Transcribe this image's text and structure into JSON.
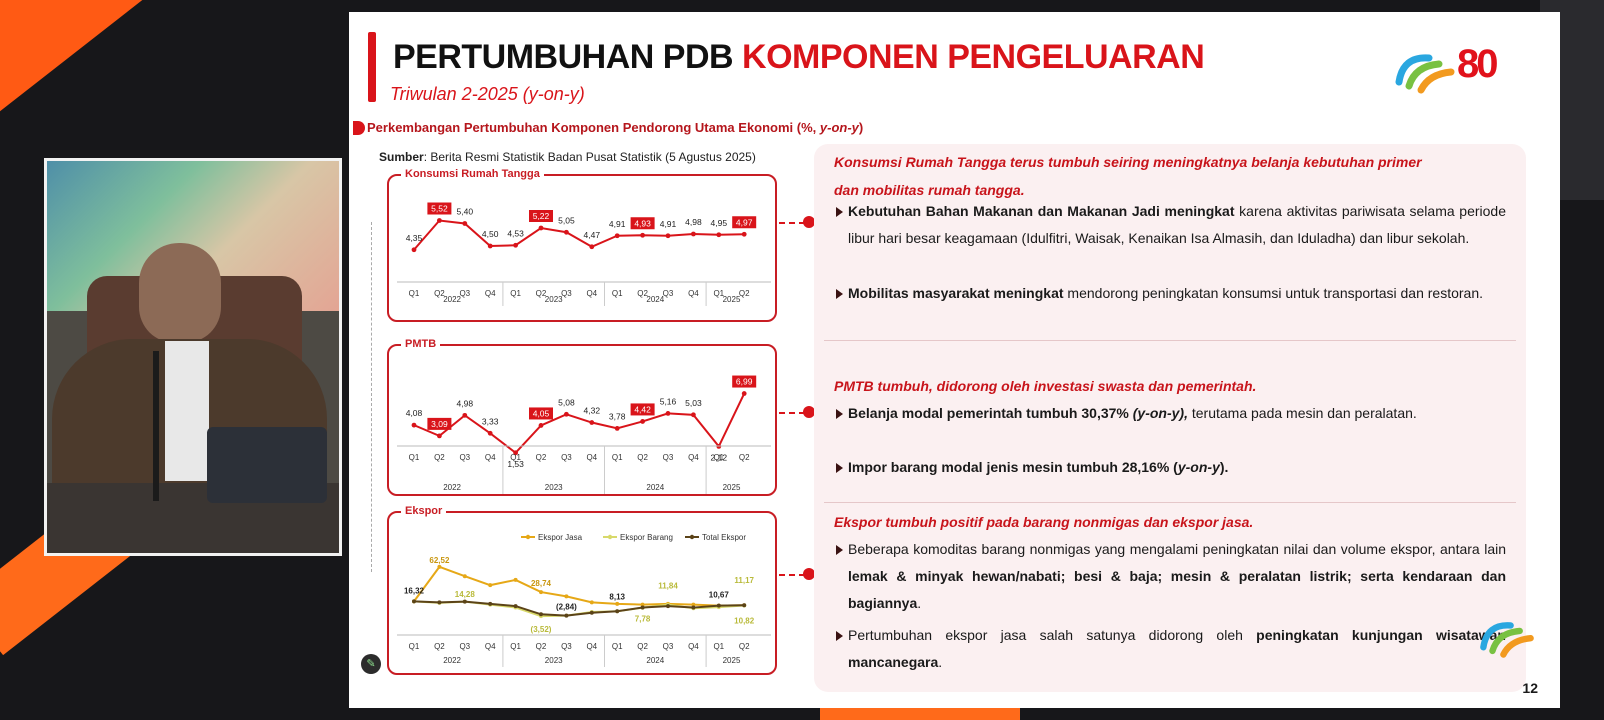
{
  "header": {
    "title_black": "PERTUMBUHAN PDB",
    "title_red": "KOMPONEN PENGELUARAN",
    "subtitle": "Triwulan 2-2025 (y-on-y)",
    "logo_text": "80",
    "page_number": "12"
  },
  "section": {
    "title_a": "Perkembangan Pertumbuhan Komponen Pendorong Utama Ekonomi (%, ",
    "title_b": "y-on-y",
    "title_c": ")",
    "source_label": "Sumber",
    "source_text": ": Berita Resmi Statistik Badan Pusat Statistik (5 Agustus 2025)"
  },
  "colors": {
    "accent": "#d9141a",
    "line_jasa": "#e6a817",
    "line_barang": "#d8d96a",
    "line_total": "#5b4318"
  },
  "chart_data": [
    {
      "type": "line",
      "title": "Konsumsi Rumah Tangga",
      "categories": [
        "Q1",
        "Q2",
        "Q3",
        "Q4",
        "Q1",
        "Q2",
        "Q3",
        "Q4",
        "Q1",
        "Q2",
        "Q3",
        "Q4",
        "Q1",
        "Q2"
      ],
      "years": [
        "2022",
        "2023",
        "2024",
        "2025"
      ],
      "values": [
        4.35,
        5.52,
        5.4,
        4.5,
        4.53,
        5.22,
        5.05,
        4.47,
        4.91,
        4.93,
        4.91,
        4.98,
        4.95,
        4.97
      ],
      "labels": [
        "4,35",
        "5,52",
        "5,40",
        "4,50",
        "4,53",
        "5,22",
        "5,05",
        "4,47",
        "4,91",
        "4,93",
        "4,91",
        "4,98",
        "4,95",
        "4,97"
      ],
      "highlight": [
        1,
        5,
        9,
        13
      ],
      "color": "#d9141a"
    },
    {
      "type": "line",
      "title": "PMTB",
      "categories": [
        "Q1",
        "Q2",
        "Q3",
        "Q4",
        "Q1",
        "Q2",
        "Q3",
        "Q4",
        "Q1",
        "Q2",
        "Q3",
        "Q4",
        "Q1",
        "Q2"
      ],
      "years": [
        "2022",
        "2023",
        "2024",
        "2025"
      ],
      "values": [
        4.08,
        3.09,
        4.98,
        3.33,
        1.53,
        4.05,
        5.08,
        4.32,
        3.78,
        4.42,
        5.16,
        5.03,
        2.12,
        6.99
      ],
      "labels": [
        "4,08",
        "3,09",
        "4,98",
        "3,33",
        "1,53",
        "4,05",
        "5,08",
        "4,32",
        "3,78",
        "4,42",
        "5,16",
        "5,03",
        "2,12",
        "6,99"
      ],
      "highlight": [
        1,
        5,
        9,
        13
      ],
      "color": "#d9141a"
    },
    {
      "type": "line",
      "title": "Ekspor",
      "categories": [
        "Q1",
        "Q2",
        "Q3",
        "Q4",
        "Q1",
        "Q2",
        "Q3",
        "Q4",
        "Q1",
        "Q2",
        "Q3",
        "Q4",
        "Q1",
        "Q2"
      ],
      "years": [
        "2022",
        "2023",
        "2024",
        "2025"
      ],
      "legend": [
        "Ekspor Jasa",
        "Ekspor Barang",
        "Total Ekspor"
      ],
      "series": [
        {
          "name": "Ekspor Jasa",
          "values": [
            16.32,
            62.52,
            50,
            38,
            45,
            28.74,
            23,
            15,
            13,
            12,
            13,
            12,
            10.67,
            11.17
          ]
        },
        {
          "name": "Ekspor Barang",
          "values": [
            16.32,
            14.28,
            16,
            12,
            8,
            -3.52,
            -2.84,
            2,
            3,
            7.78,
            11.84,
            7,
            8.5,
            10.82
          ]
        },
        {
          "name": "Total Ekspor",
          "values": [
            16.32,
            15,
            16,
            13,
            10,
            -1,
            -2.84,
            1,
            3,
            8.13,
            10,
            8,
            10.67,
            11.17
          ]
        }
      ],
      "labels": [
        "16,32",
        "62,52",
        "14,28",
        "28,74",
        "(3,52)",
        "(2,84)",
        "8,13",
        "7,78",
        "11,84",
        "10,67",
        "11,17",
        "10,82"
      ]
    }
  ],
  "blocks": [
    {
      "heading_a": "Konsumsi Rumah Tangga terus tumbuh seiring meningkatnya belanja kebutuhan primer",
      "heading_b": "dan mobilitas rumah tangga.",
      "bullets": [
        {
          "bold": "Kebutuhan Bahan Makanan dan Makanan Jadi meningkat",
          "rest": " karena aktivitas pariwisata selama periode libur hari besar keagamaan (Idulfitri, Waisak, Kenaikan Isa Almasih, dan Iduladha) dan libur sekolah."
        },
        {
          "bold": "Mobilitas masyarakat meningkat",
          "rest": " mendorong peningkatan konsumsi untuk transportasi dan restoran."
        }
      ]
    },
    {
      "heading": "PMTB tumbuh, didorong oleh investasi swasta dan pemerintah.",
      "bullets": [
        {
          "bold": "Belanja modal pemerintah tumbuh 30,37% ",
          "bold_italic": "(y-on-y),",
          "rest": " terutama pada mesin dan peralatan."
        },
        {
          "bold": "Impor barang modal jenis mesin tumbuh 28,16% (",
          "bold_italic": "y-on-y",
          "bold_end": ")."
        }
      ]
    },
    {
      "heading": "Ekspor tumbuh positif pada barang nonmigas dan ekspor jasa.",
      "bullets": [
        {
          "text": "Beberapa komoditas barang nonmigas yang mengalami peningkatan nilai dan volume ekspor, antara lain ",
          "bold": "lemak & minyak hewan/nabati; besi & baja; mesin & peralatan listrik; serta kendaraan dan bagiannya",
          "end": "."
        },
        {
          "text": "Pertumbuhan ekspor jasa salah satunya didorong oleh ",
          "bold": "peningkatan kunjungan wisatawan mancanegara",
          "end": "."
        }
      ]
    }
  ]
}
